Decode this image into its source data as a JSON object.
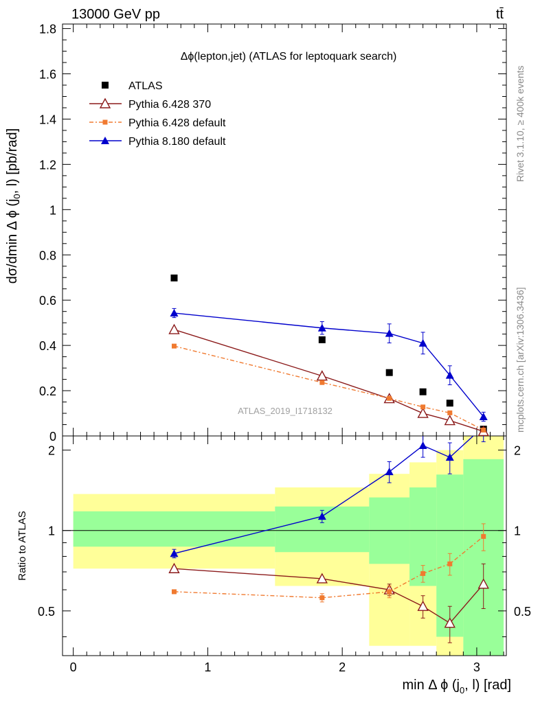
{
  "header": {
    "left": "13000 GeV pp",
    "right": "tt̄"
  },
  "side_text": {
    "rivet": "Rivet 3.1.10, ≥ 400k events",
    "mcplots": "mcplots.cern.ch [arXiv:1306.3436]"
  },
  "chart_data": {
    "type": "scatter",
    "title": "Δϕ(lepton,jet) (ATLAS for leptoquark search)",
    "watermark": "ATLAS_2019_I1718132",
    "xlabel": "min Δ ϕ (j0, l) [rad]",
    "xlabel_parts": {
      "main": "min Δ ϕ (j",
      "sub": "0",
      "rest": ", l) [rad]"
    },
    "ylabel": "dσ/dmin Δ ϕ (j0, l) [pb/rad]",
    "ylabel_parts": {
      "main": "dσ/dmin Δ ϕ (j",
      "sub": "0",
      "rest": ", l) [pb/rad]"
    },
    "ratio_ylabel": "Ratio to ATLAS",
    "xlim": [
      -0.08,
      3.22
    ],
    "main_ylim": [
      0,
      1.82
    ],
    "ratio_ylim": [
      0.34,
      2.26
    ],
    "x_ticks": [
      "0",
      "1",
      "2",
      "3"
    ],
    "main_y_ticks": [
      "0",
      "0.2",
      "0.4",
      "0.6",
      "0.8",
      "1",
      "1.2",
      "1.4",
      "1.6",
      "1.8"
    ],
    "ratio_y_ticks": [
      "0.5",
      "1",
      "2"
    ],
    "legend_position": "top-left",
    "x": [
      0.75,
      1.85,
      2.35,
      2.6,
      2.8,
      3.05
    ],
    "series": [
      {
        "name": "ATLAS",
        "color": "#000000",
        "marker": "square",
        "values": [
          0.698,
          0.425,
          0.28,
          0.195,
          0.145,
          0.03
        ]
      },
      {
        "name": "Pythia 6.428 370",
        "color": "#8b1a1a",
        "marker": "open-triangle",
        "values": [
          0.47,
          0.265,
          0.165,
          0.1,
          0.068,
          0.02
        ],
        "ratio": [
          0.72,
          0.66,
          0.6,
          0.52,
          0.45,
          0.63
        ],
        "ratio_err": [
          0.01,
          0.01,
          0.03,
          0.05,
          0.07,
          0.12
        ]
      },
      {
        "name": "Pythia 6.428 default",
        "color": "#f07a30",
        "marker": "square-small",
        "values": [
          0.397,
          0.236,
          0.166,
          0.128,
          0.102,
          0.026
        ],
        "ratio": [
          0.59,
          0.56,
          0.59,
          0.69,
          0.75,
          0.95
        ],
        "ratio_err": [
          0.01,
          0.02,
          0.03,
          0.05,
          0.07,
          0.11
        ]
      },
      {
        "name": "Pythia 8.180 default",
        "color": "#0000cc",
        "marker": "triangle",
        "values": [
          0.543,
          0.477,
          0.453,
          0.41,
          0.268,
          0.085
        ],
        "errors": [
          0.02,
          0.028,
          0.042,
          0.048,
          0.042,
          0.02
        ],
        "ratio": [
          0.82,
          1.13,
          1.66,
          2.08,
          1.88,
          2.45
        ],
        "ratio_err": [
          0.03,
          0.06,
          0.15,
          0.2,
          0.25,
          0.3
        ]
      }
    ],
    "ratio_bands": {
      "yellow": [
        {
          "x0": 0,
          "x1": 1.5,
          "lo": 0.72,
          "hi": 1.37
        },
        {
          "x0": 1.5,
          "x1": 2.2,
          "lo": 0.62,
          "hi": 1.45
        },
        {
          "x0": 2.2,
          "x1": 2.5,
          "lo": 0.37,
          "hi": 1.63
        },
        {
          "x0": 2.5,
          "x1": 2.7,
          "lo": 0.37,
          "hi": 1.8
        },
        {
          "x0": 2.7,
          "x1": 2.9,
          "lo": 0.34,
          "hi": 2.0
        },
        {
          "x0": 2.9,
          "x1": 3.2,
          "lo": 0.34,
          "hi": 2.26
        }
      ],
      "green": [
        {
          "x0": 0,
          "x1": 1.5,
          "lo": 0.87,
          "hi": 1.18
        },
        {
          "x0": 1.5,
          "x1": 2.2,
          "lo": 0.83,
          "hi": 1.23
        },
        {
          "x0": 2.2,
          "x1": 2.5,
          "lo": 0.75,
          "hi": 1.33
        },
        {
          "x0": 2.5,
          "x1": 2.7,
          "lo": 0.62,
          "hi": 1.45
        },
        {
          "x0": 2.7,
          "x1": 2.9,
          "lo": 0.4,
          "hi": 1.62
        },
        {
          "x0": 2.9,
          "x1": 3.2,
          "lo": 0.34,
          "hi": 1.85
        }
      ]
    }
  }
}
